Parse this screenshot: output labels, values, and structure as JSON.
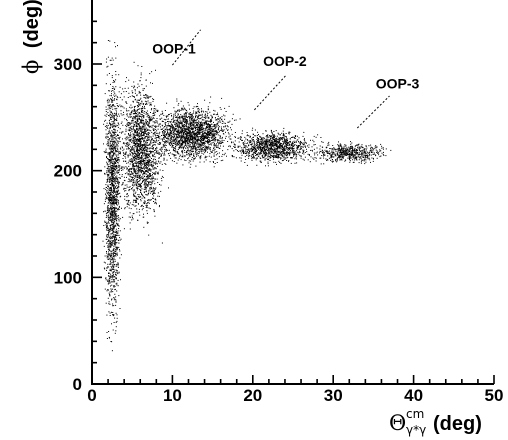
{
  "chart_data": {
    "type": "scatter",
    "xlabel": {
      "symbol": "Θ",
      "superscript": "cm",
      "subscript": "γ*γ",
      "unit": "(deg)"
    },
    "ylabel": {
      "symbol": "ϕ",
      "unit": "(deg)"
    },
    "xlim": [
      0,
      50
    ],
    "ylim": [
      0,
      360
    ],
    "x_ticks": [
      0,
      10,
      20,
      30,
      40,
      50
    ],
    "y_ticks": [
      0,
      100,
      200,
      300
    ],
    "x_tick_labels": [
      "0",
      "10",
      "20",
      "30",
      "40",
      "50"
    ],
    "y_tick_labels": [
      "0",
      "100",
      "200",
      "300"
    ],
    "grid": false,
    "legend": "none",
    "point_color": "#000000",
    "annotations": [
      {
        "text": "OOP-1",
        "x": 10.2,
        "y": 310,
        "line_from": [
          10.0,
          299
        ],
        "line_to": [
          13.5,
          332
        ]
      },
      {
        "text": "OOP-2",
        "x": 24.0,
        "y": 298,
        "line_from": [
          20.2,
          257
        ],
        "line_to": [
          24.2,
          290
        ]
      },
      {
        "text": "OOP-3",
        "x": 38.0,
        "y": 277,
        "line_from": [
          33.0,
          240
        ],
        "line_to": [
          37.0,
          270
        ]
      }
    ],
    "series": [
      {
        "distribution": [
          {
            "x": [
              1.0,
              4.0
            ],
            "y": [
              0,
              360
            ],
            "weight": 0.22
          },
          {
            "x": [
              2.0,
              10.0
            ],
            "y": [
              120,
              320
            ],
            "weight": 0.26
          },
          {
            "x": [
              5.0,
              20.0
            ],
            "y": [
              195,
              275
            ],
            "weight": 0.28
          },
          {
            "x": [
              15.0,
              30.0
            ],
            "y": [
              200,
              245
            ],
            "weight": 0.16
          },
          {
            "x": [
              25.0,
              39.0
            ],
            "y": [
              203,
              232
            ],
            "weight": 0.08
          }
        ]
      }
    ]
  }
}
